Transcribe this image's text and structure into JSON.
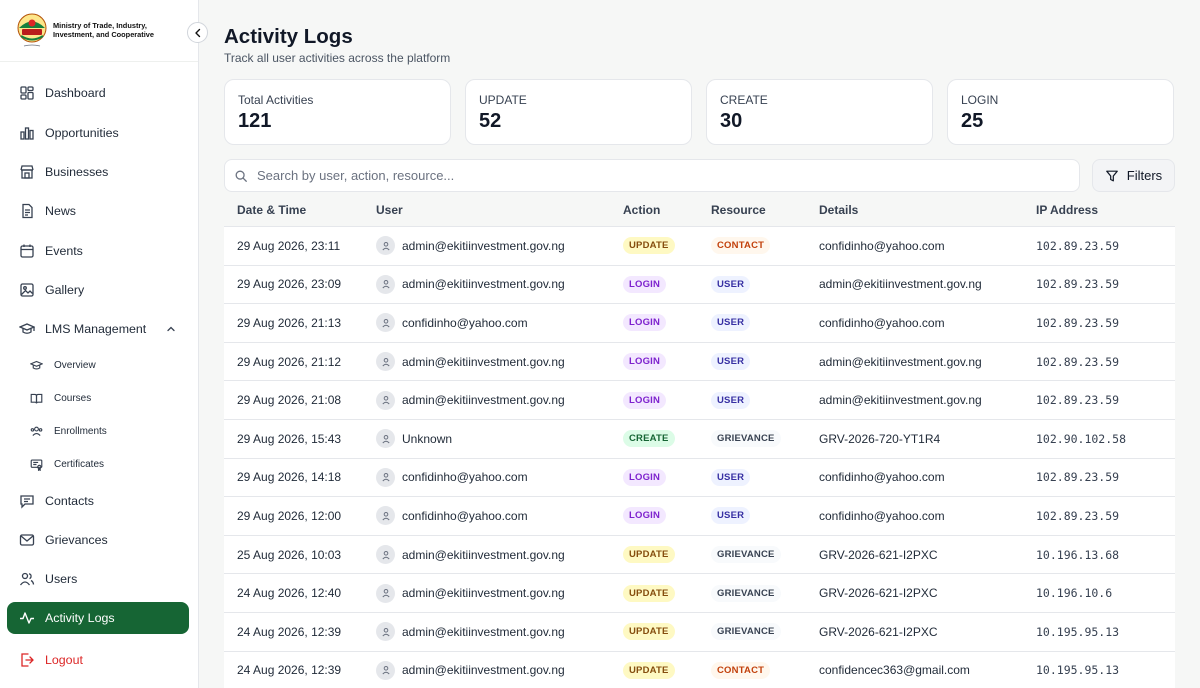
{
  "brand": {
    "org_name": "Ministry of Trade, Industry, Investment, and Cooperative",
    "logo_motto": "Ekiti Kete"
  },
  "sidebar": {
    "items": [
      {
        "label": "Dashboard",
        "icon": "dashboard-icon"
      },
      {
        "label": "Opportunities",
        "icon": "bar-chart-icon"
      },
      {
        "label": "Businesses",
        "icon": "store-icon"
      },
      {
        "label": "News",
        "icon": "document-icon"
      },
      {
        "label": "Events",
        "icon": "calendar-icon"
      },
      {
        "label": "Gallery",
        "icon": "image-icon"
      },
      {
        "label": "LMS Management",
        "icon": "graduation-cap-icon",
        "expanded": true
      }
    ],
    "lms_items": [
      {
        "label": "Overview",
        "icon": "graduation-cap-icon"
      },
      {
        "label": "Courses",
        "icon": "book-icon"
      },
      {
        "label": "Enrollments",
        "icon": "users-icon"
      },
      {
        "label": "Certificates",
        "icon": "certificate-icon"
      }
    ],
    "bottom_items": [
      {
        "label": "Contacts",
        "icon": "message-icon"
      },
      {
        "label": "Grievances",
        "icon": "mail-icon"
      },
      {
        "label": "Users",
        "icon": "users-icon"
      },
      {
        "label": "Activity Logs",
        "icon": "activity-icon",
        "active": true
      }
    ],
    "logout_label": "Logout"
  },
  "header": {
    "title": "Activity Logs",
    "subtitle": "Track all user activities across the platform"
  },
  "stats": [
    {
      "label": "Total Activities",
      "value": "121"
    },
    {
      "label": "UPDATE",
      "value": "52"
    },
    {
      "label": "CREATE",
      "value": "30"
    },
    {
      "label": "LOGIN",
      "value": "25"
    }
  ],
  "search": {
    "placeholder": "Search by user, action, resource..."
  },
  "filters_label": "Filters",
  "table": {
    "columns": [
      "Date & Time",
      "User",
      "Action",
      "Resource",
      "Details",
      "IP Address"
    ],
    "rows": [
      {
        "date": "29 Aug 2026, 23:11",
        "user": "admin@ekitiinvestment.gov.ng",
        "action": "UPDATE",
        "resource": "CONTACT",
        "details": "confidinho@yahoo.com",
        "ip": "102.89.23.59"
      },
      {
        "date": "29 Aug 2026, 23:09",
        "user": "admin@ekitiinvestment.gov.ng",
        "action": "LOGIN",
        "resource": "USER",
        "details": "admin@ekitiinvestment.gov.ng",
        "ip": "102.89.23.59"
      },
      {
        "date": "29 Aug 2026, 21:13",
        "user": "confidinho@yahoo.com",
        "action": "LOGIN",
        "resource": "USER",
        "details": "confidinho@yahoo.com",
        "ip": "102.89.23.59"
      },
      {
        "date": "29 Aug 2026, 21:12",
        "user": "admin@ekitiinvestment.gov.ng",
        "action": "LOGIN",
        "resource": "USER",
        "details": "admin@ekitiinvestment.gov.ng",
        "ip": "102.89.23.59"
      },
      {
        "date": "29 Aug 2026, 21:08",
        "user": "admin@ekitiinvestment.gov.ng",
        "action": "LOGIN",
        "resource": "USER",
        "details": "admin@ekitiinvestment.gov.ng",
        "ip": "102.89.23.59"
      },
      {
        "date": "29 Aug 2026, 15:43",
        "user": "Unknown",
        "action": "CREATE",
        "resource": "GRIEVANCE",
        "details": "GRV-2026-720-YT1R4",
        "ip": "102.90.102.58"
      },
      {
        "date": "29 Aug 2026, 14:18",
        "user": "confidinho@yahoo.com",
        "action": "LOGIN",
        "resource": "USER",
        "details": "confidinho@yahoo.com",
        "ip": "102.89.23.59"
      },
      {
        "date": "29 Aug 2026, 12:00",
        "user": "confidinho@yahoo.com",
        "action": "LOGIN",
        "resource": "USER",
        "details": "confidinho@yahoo.com",
        "ip": "102.89.23.59"
      },
      {
        "date": "25 Aug 2026, 10:03",
        "user": "admin@ekitiinvestment.gov.ng",
        "action": "UPDATE",
        "resource": "GRIEVANCE",
        "details": "GRV-2026-621-I2PXC",
        "ip": "10.196.13.68"
      },
      {
        "date": "24 Aug 2026, 12:40",
        "user": "admin@ekitiinvestment.gov.ng",
        "action": "UPDATE",
        "resource": "GRIEVANCE",
        "details": "GRV-2026-621-I2PXC",
        "ip": "10.196.10.6"
      },
      {
        "date": "24 Aug 2026, 12:39",
        "user": "admin@ekitiinvestment.gov.ng",
        "action": "UPDATE",
        "resource": "GRIEVANCE",
        "details": "GRV-2026-621-I2PXC",
        "ip": "10.195.95.13"
      },
      {
        "date": "24 Aug 2026, 12:39",
        "user": "admin@ekitiinvestment.gov.ng",
        "action": "UPDATE",
        "resource": "CONTACT",
        "details": "confidencec363@gmail.com",
        "ip": "10.195.95.13"
      }
    ]
  },
  "colors": {
    "brand_green": "#166534",
    "logout_red": "#dc2626"
  }
}
